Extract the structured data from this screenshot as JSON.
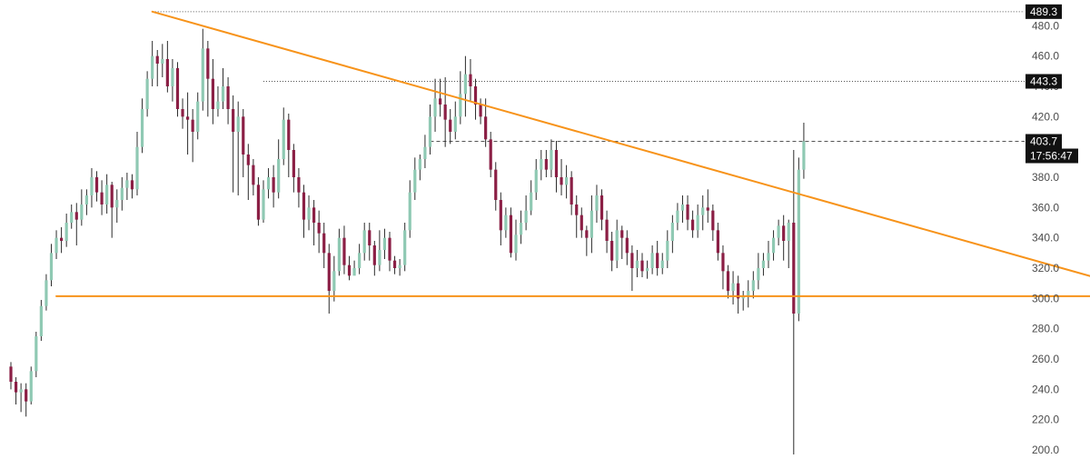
{
  "chart_data": {
    "type": "candlestick",
    "title": "",
    "xlabel": "",
    "ylabel": "",
    "ylim": [
      197,
      497
    ],
    "grid": false,
    "y_ticks": [
      "200.0",
      "220.0",
      "240.0",
      "260.0",
      "280.0",
      "300.0",
      "320.0",
      "340.0",
      "360.0",
      "380.0",
      "400.0",
      "420.0",
      "440.0",
      "460.0",
      "480.0"
    ],
    "price_labels": [
      {
        "name": "high-level",
        "text": "489.3",
        "value": 489.3,
        "line_style": "dotted"
      },
      {
        "name": "swing-level",
        "text": "443.3",
        "value": 443.3,
        "line_style": "dotted"
      },
      {
        "name": "last-price",
        "text": "403.7",
        "value": 403.7,
        "line_style": "dashed"
      }
    ],
    "countdown": "17:56:47",
    "trendlines": [
      {
        "name": "descending-resistance",
        "from": {
          "bar": 28,
          "price": 489.3
        },
        "to": {
          "bar": 223,
          "price": 306
        },
        "color": "#f7931a"
      },
      {
        "name": "horizontal-support",
        "from": {
          "bar": 9,
          "price": 301.5
        },
        "to": {
          "bar": 223,
          "price": 301.5
        },
        "color": "#f7931a"
      }
    ],
    "colors": {
      "up": "#8fc9b3",
      "down": "#8b1f45",
      "wick": "#2b2b2b",
      "trend": "#f7931a",
      "badge": "#111111",
      "guide": "#555555"
    },
    "candles": [
      [
        255,
        245,
        258,
        240
      ],
      [
        245,
        238,
        248,
        230
      ],
      [
        238,
        240,
        244,
        225
      ],
      [
        240,
        232,
        244,
        222
      ],
      [
        232,
        252,
        255,
        230
      ],
      [
        252,
        275,
        278,
        248
      ],
      [
        275,
        295,
        299,
        272
      ],
      [
        295,
        312,
        316,
        292
      ],
      [
        312,
        330,
        336,
        308
      ],
      [
        330,
        340,
        345,
        326
      ],
      [
        340,
        338,
        347,
        330
      ],
      [
        338,
        350,
        356,
        334
      ],
      [
        350,
        357,
        362,
        346
      ],
      [
        357,
        352,
        363,
        335
      ],
      [
        352,
        362,
        372,
        348
      ],
      [
        362,
        368,
        372,
        355
      ],
      [
        368,
        380,
        386,
        360
      ],
      [
        380,
        370,
        384,
        364
      ],
      [
        370,
        362,
        378,
        355
      ],
      [
        362,
        375,
        382,
        356
      ],
      [
        375,
        360,
        377,
        340
      ],
      [
        360,
        365,
        372,
        350
      ],
      [
        365,
        373,
        380,
        358
      ],
      [
        373,
        378,
        383,
        365
      ],
      [
        378,
        372,
        382,
        366
      ],
      [
        372,
        400,
        410,
        368
      ],
      [
        400,
        425,
        432,
        396
      ],
      [
        425,
        445,
        450,
        420
      ],
      [
        445,
        460,
        470,
        440
      ],
      [
        460,
        455,
        464,
        440
      ],
      [
        455,
        458,
        468,
        446
      ],
      [
        458,
        440,
        470,
        436
      ],
      [
        440,
        452,
        458,
        430
      ],
      [
        452,
        425,
        456,
        420
      ],
      [
        425,
        420,
        432,
        412
      ],
      [
        420,
        418,
        436,
        395
      ],
      [
        418,
        410,
        425,
        390
      ],
      [
        410,
        430,
        436,
        405
      ],
      [
        430,
        465,
        478,
        424
      ],
      [
        465,
        445,
        470,
        420
      ],
      [
        445,
        425,
        458,
        415
      ],
      [
        425,
        430,
        440,
        420
      ],
      [
        430,
        440,
        452,
        425
      ],
      [
        440,
        425,
        446,
        415
      ],
      [
        425,
        410,
        434,
        370
      ],
      [
        410,
        420,
        430,
        368
      ],
      [
        420,
        395,
        425,
        380
      ],
      [
        395,
        388,
        402,
        365
      ],
      [
        388,
        375,
        392,
        368
      ],
      [
        375,
        352,
        380,
        348
      ],
      [
        352,
        372,
        378,
        350
      ],
      [
        372,
        380,
        386,
        366
      ],
      [
        380,
        370,
        388,
        360
      ],
      [
        370,
        392,
        405,
        366
      ],
      [
        392,
        418,
        426,
        388
      ],
      [
        418,
        398,
        422,
        380
      ],
      [
        398,
        380,
        402,
        370
      ],
      [
        380,
        370,
        386,
        360
      ],
      [
        370,
        352,
        375,
        340
      ],
      [
        352,
        360,
        368,
        345
      ],
      [
        360,
        350,
        365,
        335
      ],
      [
        350,
        343,
        358,
        330
      ],
      [
        343,
        330,
        350,
        320
      ],
      [
        330,
        305,
        336,
        290
      ],
      [
        305,
        318,
        328,
        298
      ],
      [
        318,
        340,
        346,
        315
      ],
      [
        340,
        322,
        348,
        316
      ],
      [
        322,
        315,
        328,
        312
      ],
      [
        315,
        320,
        325,
        316
      ],
      [
        320,
        330,
        336,
        316
      ],
      [
        330,
        345,
        350,
        325
      ],
      [
        345,
        335,
        350,
        325
      ],
      [
        335,
        322,
        338,
        315
      ],
      [
        322,
        332,
        345,
        318
      ],
      [
        332,
        340,
        346,
        326
      ],
      [
        340,
        325,
        344,
        318
      ],
      [
        325,
        320,
        328,
        316
      ],
      [
        320,
        322,
        326,
        315
      ],
      [
        322,
        345,
        350,
        318
      ],
      [
        345,
        370,
        378,
        340
      ],
      [
        370,
        385,
        393,
        365
      ],
      [
        385,
        392,
        395,
        378
      ],
      [
        392,
        400,
        408,
        386
      ],
      [
        400,
        420,
        428,
        395
      ],
      [
        420,
        432,
        445,
        410
      ],
      [
        432,
        428,
        445,
        420
      ],
      [
        428,
        418,
        446,
        400
      ],
      [
        418,
        410,
        425,
        402
      ],
      [
        410,
        420,
        430,
        405
      ],
      [
        420,
        435,
        450,
        415
      ],
      [
        435,
        448,
        460,
        420
      ],
      [
        448,
        440,
        458,
        430
      ],
      [
        440,
        428,
        445,
        418
      ],
      [
        428,
        420,
        432,
        415
      ],
      [
        420,
        405,
        432,
        400
      ],
      [
        405,
        385,
        410,
        380
      ],
      [
        385,
        365,
        390,
        358
      ],
      [
        365,
        345,
        370,
        335
      ],
      [
        345,
        355,
        360,
        340
      ],
      [
        355,
        330,
        360,
        327
      ],
      [
        330,
        342,
        352,
        325
      ],
      [
        342,
        350,
        358,
        336
      ],
      [
        350,
        358,
        368,
        345
      ],
      [
        358,
        370,
        378,
        355
      ],
      [
        370,
        385,
        392,
        365
      ],
      [
        385,
        392,
        398,
        378
      ],
      [
        392,
        385,
        398,
        380
      ],
      [
        385,
        398,
        405,
        380
      ],
      [
        398,
        380,
        404,
        370
      ],
      [
        380,
        375,
        392,
        368
      ],
      [
        375,
        380,
        388,
        366
      ],
      [
        380,
        362,
        384,
        355
      ],
      [
        362,
        355,
        368,
        340
      ],
      [
        355,
        345,
        360,
        340
      ],
      [
        345,
        340,
        348,
        328
      ],
      [
        340,
        358,
        368,
        330
      ],
      [
        358,
        368,
        375,
        350
      ],
      [
        368,
        352,
        372,
        345
      ],
      [
        352,
        338,
        358,
        330
      ],
      [
        338,
        325,
        344,
        318
      ],
      [
        325,
        345,
        352,
        320
      ],
      [
        345,
        340,
        348,
        326
      ],
      [
        340,
        330,
        345,
        322
      ],
      [
        330,
        320,
        335,
        305
      ],
      [
        320,
        325,
        332,
        314
      ],
      [
        325,
        318,
        330,
        314
      ],
      [
        318,
        320,
        325,
        313
      ],
      [
        320,
        330,
        335,
        316
      ],
      [
        330,
        320,
        338,
        315
      ],
      [
        320,
        325,
        330,
        316
      ],
      [
        325,
        338,
        345,
        320
      ],
      [
        338,
        350,
        355,
        330
      ],
      [
        350,
        358,
        363,
        345
      ],
      [
        358,
        362,
        368,
        350
      ],
      [
        362,
        352,
        368,
        345
      ],
      [
        352,
        345,
        358,
        340
      ],
      [
        345,
        355,
        362,
        340
      ],
      [
        355,
        360,
        368,
        345
      ],
      [
        360,
        358,
        372,
        350
      ],
      [
        358,
        345,
        362,
        338
      ],
      [
        345,
        330,
        350,
        325
      ],
      [
        330,
        318,
        335,
        306
      ],
      [
        318,
        305,
        322,
        300
      ],
      [
        305,
        310,
        318,
        296
      ],
      [
        310,
        300,
        315,
        290
      ],
      [
        300,
        302,
        305,
        292
      ],
      [
        302,
        305,
        312,
        294
      ],
      [
        305,
        312,
        318,
        300
      ],
      [
        312,
        320,
        330,
        306
      ],
      [
        320,
        325,
        330,
        315
      ],
      [
        325,
        330,
        338,
        320
      ],
      [
        330,
        340,
        345,
        325
      ],
      [
        340,
        348,
        352,
        335
      ],
      [
        348,
        338,
        355,
        325
      ],
      [
        338,
        350,
        352,
        320
      ],
      [
        350,
        290,
        398,
        190
      ],
      [
        290,
        385,
        393,
        285
      ],
      [
        385,
        403.7,
        416,
        379
      ]
    ]
  },
  "axis": {
    "ticks": [
      "200.0",
      "220.0",
      "240.0",
      "260.0",
      "280.0",
      "300.0",
      "320.0",
      "340.0",
      "360.0",
      "380.0",
      "400.0",
      "420.0",
      "440.0",
      "460.0",
      "480.0"
    ]
  }
}
